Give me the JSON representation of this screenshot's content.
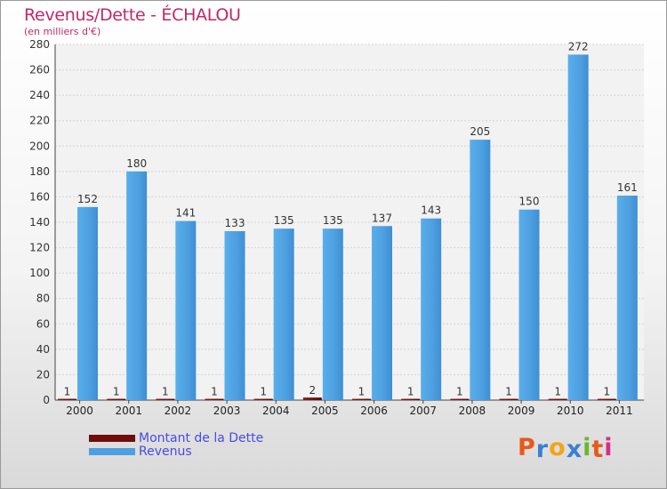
{
  "chart_data": {
    "type": "bar",
    "title": "Revenus/Dette - ÉCHALOU",
    "subtitle": "(en milliers d'€)",
    "categories": [
      "2000",
      "2001",
      "2002",
      "2003",
      "2004",
      "2005",
      "2006",
      "2007",
      "2008",
      "2009",
      "2010",
      "2011"
    ],
    "series": [
      {
        "name": "Montant de la Dette",
        "color": "#6e0d0d",
        "values": [
          1,
          1,
          1,
          1,
          1,
          2,
          1,
          1,
          1,
          1,
          1,
          1
        ]
      },
      {
        "name": "Revenus",
        "color": "#4d9fe0",
        "values": [
          152,
          180,
          141,
          133,
          135,
          135,
          137,
          143,
          205,
          150,
          272,
          161
        ]
      }
    ],
    "ylim": [
      0,
      280
    ],
    "yticks": [
      0,
      20,
      40,
      60,
      80,
      100,
      120,
      140,
      160,
      180,
      200,
      220,
      240,
      260,
      280
    ],
    "grid": true,
    "legend": "bottom-left"
  },
  "logo": {
    "letters": [
      "P",
      "r",
      "o",
      "x",
      "i",
      "t",
      "i"
    ],
    "colors": [
      "#e8581c",
      "#3b7fd4",
      "#f2a516",
      "#3b7fd4",
      "#6ab82c",
      "#e8581c",
      "#d62f8a"
    ]
  }
}
